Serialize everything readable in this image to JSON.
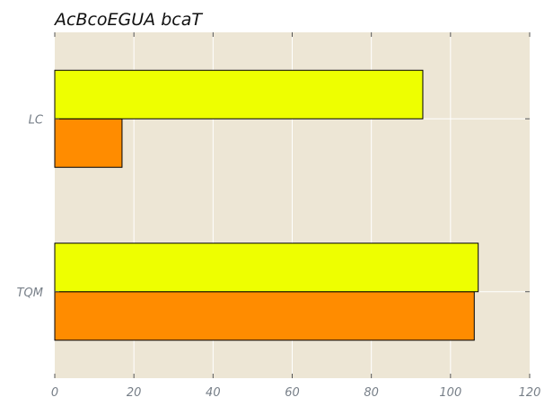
{
  "chart_data": {
    "type": "bar",
    "orientation": "horizontal",
    "title": "AcBcoEGUA bcaT",
    "xlabel": "",
    "ylabel": "",
    "categories": [
      "LC",
      "TQM"
    ],
    "series": [
      {
        "values": [
          17,
          106
        ],
        "color": "#ff8c00"
      },
      {
        "values": [
          93,
          107
        ],
        "color": "#eeff00"
      }
    ],
    "xlim": [
      0,
      120
    ],
    "xticks": [
      "0",
      "20",
      "40",
      "60",
      "80",
      "100",
      "120"
    ],
    "grid": true,
    "background_color": "#ede6d5",
    "grid_color": "#ffffff",
    "tick_label_color": "#777f88"
  }
}
